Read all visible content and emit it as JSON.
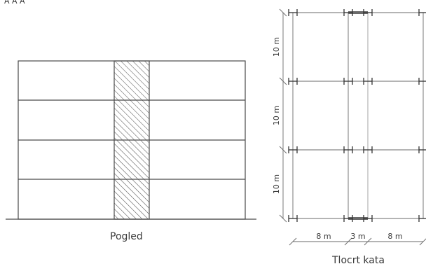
{
  "top_left_text": "A  A  A",
  "elevation": {
    "caption": "Pogled"
  },
  "plan": {
    "caption": "Tlocrt kata",
    "dimensions": {
      "vertical": [
        "10 m",
        "10 m",
        "10 m"
      ],
      "horizontal": [
        "8 m",
        "3 m",
        "8 m"
      ]
    }
  }
}
